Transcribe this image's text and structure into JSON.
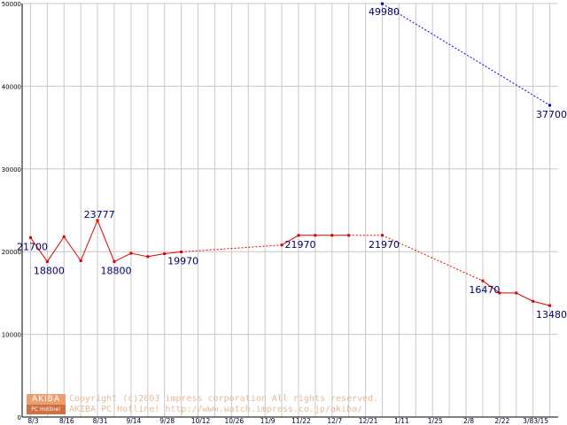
{
  "chart_data": {
    "type": "line",
    "title": "",
    "xlabel": "",
    "ylabel": "",
    "ylim": [
      0,
      50000
    ],
    "yticks": [
      0,
      10000,
      20000,
      30000,
      40000,
      50000
    ],
    "xticks": [
      "8/3",
      "8/16",
      "8/31",
      "9/14",
      "9/28",
      "10/12",
      "10/26",
      "11/9",
      "11/22",
      "12/7",
      "12/21",
      "1/11",
      "1/25",
      "2/8",
      "2/22",
      "3/83/15"
    ],
    "grid": true,
    "legend": "none",
    "series": [
      {
        "color": "#dd0000",
        "points": [
          {
            "x": 0.0,
            "y": 21700,
            "label": "21700"
          },
          {
            "x": 1.0,
            "y": 18800,
            "label": "18800"
          },
          {
            "x": 2.0,
            "y": 21800,
            "label": ""
          },
          {
            "x": 3.0,
            "y": 18900,
            "label": ""
          },
          {
            "x": 4.0,
            "y": 23777,
            "label": "23777"
          },
          {
            "x": 5.0,
            "y": 18800,
            "label": "18800"
          },
          {
            "x": 6.0,
            "y": 19800,
            "label": ""
          },
          {
            "x": 7.0,
            "y": 19400,
            "label": ""
          },
          {
            "x": 8.0,
            "y": 19750,
            "label": ""
          },
          {
            "x": 9.0,
            "y": 19970,
            "label": "19970"
          },
          {
            "x": 15.0,
            "y": 20800,
            "label": "",
            "dashed_from_prev": true
          },
          {
            "x": 16.0,
            "y": 21970,
            "label": "21970"
          },
          {
            "x": 17.0,
            "y": 21970,
            "label": ""
          },
          {
            "x": 18.0,
            "y": 21970,
            "label": ""
          },
          {
            "x": 19.0,
            "y": 21970,
            "label": ""
          },
          {
            "x": 21.0,
            "y": 21970,
            "label": "21970",
            "dashed_from_prev": true
          },
          {
            "x": 27.0,
            "y": 16470,
            "label": "16470",
            "dashed_from_prev": true
          },
          {
            "x": 28.0,
            "y": 15000,
            "label": ""
          },
          {
            "x": 29.0,
            "y": 15000,
            "label": ""
          },
          {
            "x": 30.0,
            "y": 14000,
            "label": ""
          },
          {
            "x": 31.0,
            "y": 13480,
            "label": "13480"
          }
        ]
      },
      {
        "color": "#0000dd",
        "points": [
          {
            "x": 21.0,
            "y": 49980,
            "label": "49980"
          },
          {
            "x": 31.0,
            "y": 37700,
            "label": "37700",
            "dashed_from_prev": true
          }
        ]
      }
    ]
  },
  "footer": {
    "logo_top": "AKIBA",
    "logo_bottom": "PC Hotline!",
    "copyright_line1": "Copyright (c)2003 impress corporation All rights reserved.",
    "copyright_line2": "AKIBA PC Hotline!  http://www.watch.impress.co.jp/akiba/"
  }
}
